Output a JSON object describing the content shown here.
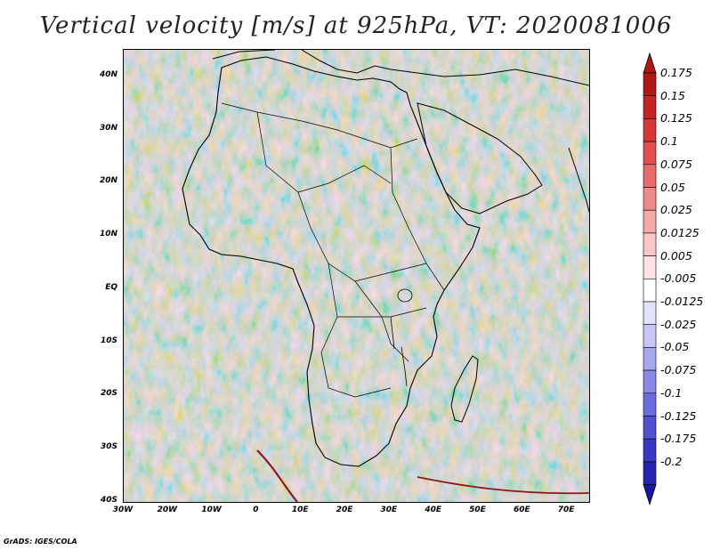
{
  "title": "Vertical velocity [m/s] at 925hPa, VT: 2020081006",
  "footer": "GrADS: IGES/COLA",
  "map": {
    "projection": "latlon",
    "lon_range": [
      -30,
      75
    ],
    "lat_range": [
      -40,
      45
    ],
    "lat_ticks": [
      {
        "value": 40,
        "label": "40N"
      },
      {
        "value": 30,
        "label": "30N"
      },
      {
        "value": 20,
        "label": "20N"
      },
      {
        "value": 10,
        "label": "10N"
      },
      {
        "value": 0,
        "label": "EQ"
      },
      {
        "value": -10,
        "label": "10S"
      },
      {
        "value": -20,
        "label": "20S"
      },
      {
        "value": -30,
        "label": "30S"
      },
      {
        "value": -40,
        "label": "40S"
      }
    ],
    "lon_ticks": [
      {
        "value": -30,
        "label": "30W"
      },
      {
        "value": -20,
        "label": "20W"
      },
      {
        "value": -10,
        "label": "10W"
      },
      {
        "value": 0,
        "label": "0"
      },
      {
        "value": 10,
        "label": "10E"
      },
      {
        "value": 20,
        "label": "20E"
      },
      {
        "value": 30,
        "label": "30E"
      },
      {
        "value": 40,
        "label": "40E"
      },
      {
        "value": 50,
        "label": "50E"
      },
      {
        "value": 60,
        "label": "60E"
      },
      {
        "value": 70,
        "label": "70E"
      }
    ]
  },
  "colorbar": {
    "levels": [
      {
        "label": "0.175",
        "color": "#b01818"
      },
      {
        "label": "0.15",
        "color": "#c42424"
      },
      {
        "label": "0.125",
        "color": "#d43838"
      },
      {
        "label": "0.1",
        "color": "#e05050"
      },
      {
        "label": "0.075",
        "color": "#e86c6c"
      },
      {
        "label": "0.05",
        "color": "#f08a8a"
      },
      {
        "label": "0.025",
        "color": "#f5a8a8"
      },
      {
        "label": "0.0125",
        "color": "#f9c6c6"
      },
      {
        "label": "0.005",
        "color": "#fce2e2"
      },
      {
        "label": "-0.005",
        "color": "#ffffff"
      },
      {
        "label": "-0.0125",
        "color": "#e2e2fb"
      },
      {
        "label": "-0.025",
        "color": "#c6c6f5"
      },
      {
        "label": "-0.05",
        "color": "#a8a8ee"
      },
      {
        "label": "-0.075",
        "color": "#8a8ae6"
      },
      {
        "label": "-0.1",
        "color": "#6c6cdc"
      },
      {
        "label": "-0.125",
        "color": "#5050d0"
      },
      {
        "label": "-0.175",
        "color": "#3838c2"
      },
      {
        "label": "-0.2",
        "color": "#2424b0"
      }
    ],
    "lowest_color": "#18189c"
  }
}
